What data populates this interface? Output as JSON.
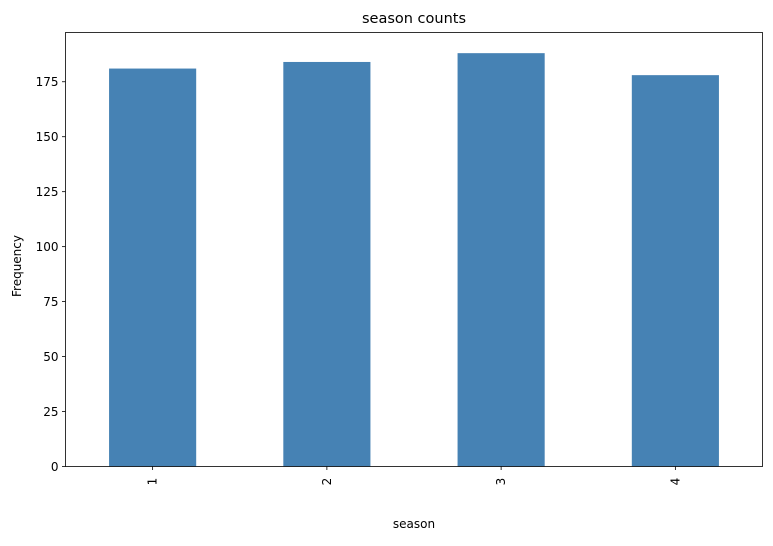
{
  "chart_data": {
    "type": "bar",
    "title": "season counts",
    "xlabel": "season",
    "ylabel": "Frequency",
    "categories": [
      "1",
      "2",
      "3",
      "4"
    ],
    "values": [
      181,
      184,
      188,
      178
    ],
    "ylim": [
      0,
      197.4
    ],
    "yticks": [
      0,
      25,
      50,
      75,
      100,
      125,
      150,
      175
    ],
    "ytick_labels": [
      "0",
      "25",
      "50",
      "75",
      "100",
      "125",
      "150",
      "175"
    ],
    "grid": false,
    "legend": "none",
    "x_tick_rotation": "vertical",
    "bar_color": "#4682b4"
  }
}
